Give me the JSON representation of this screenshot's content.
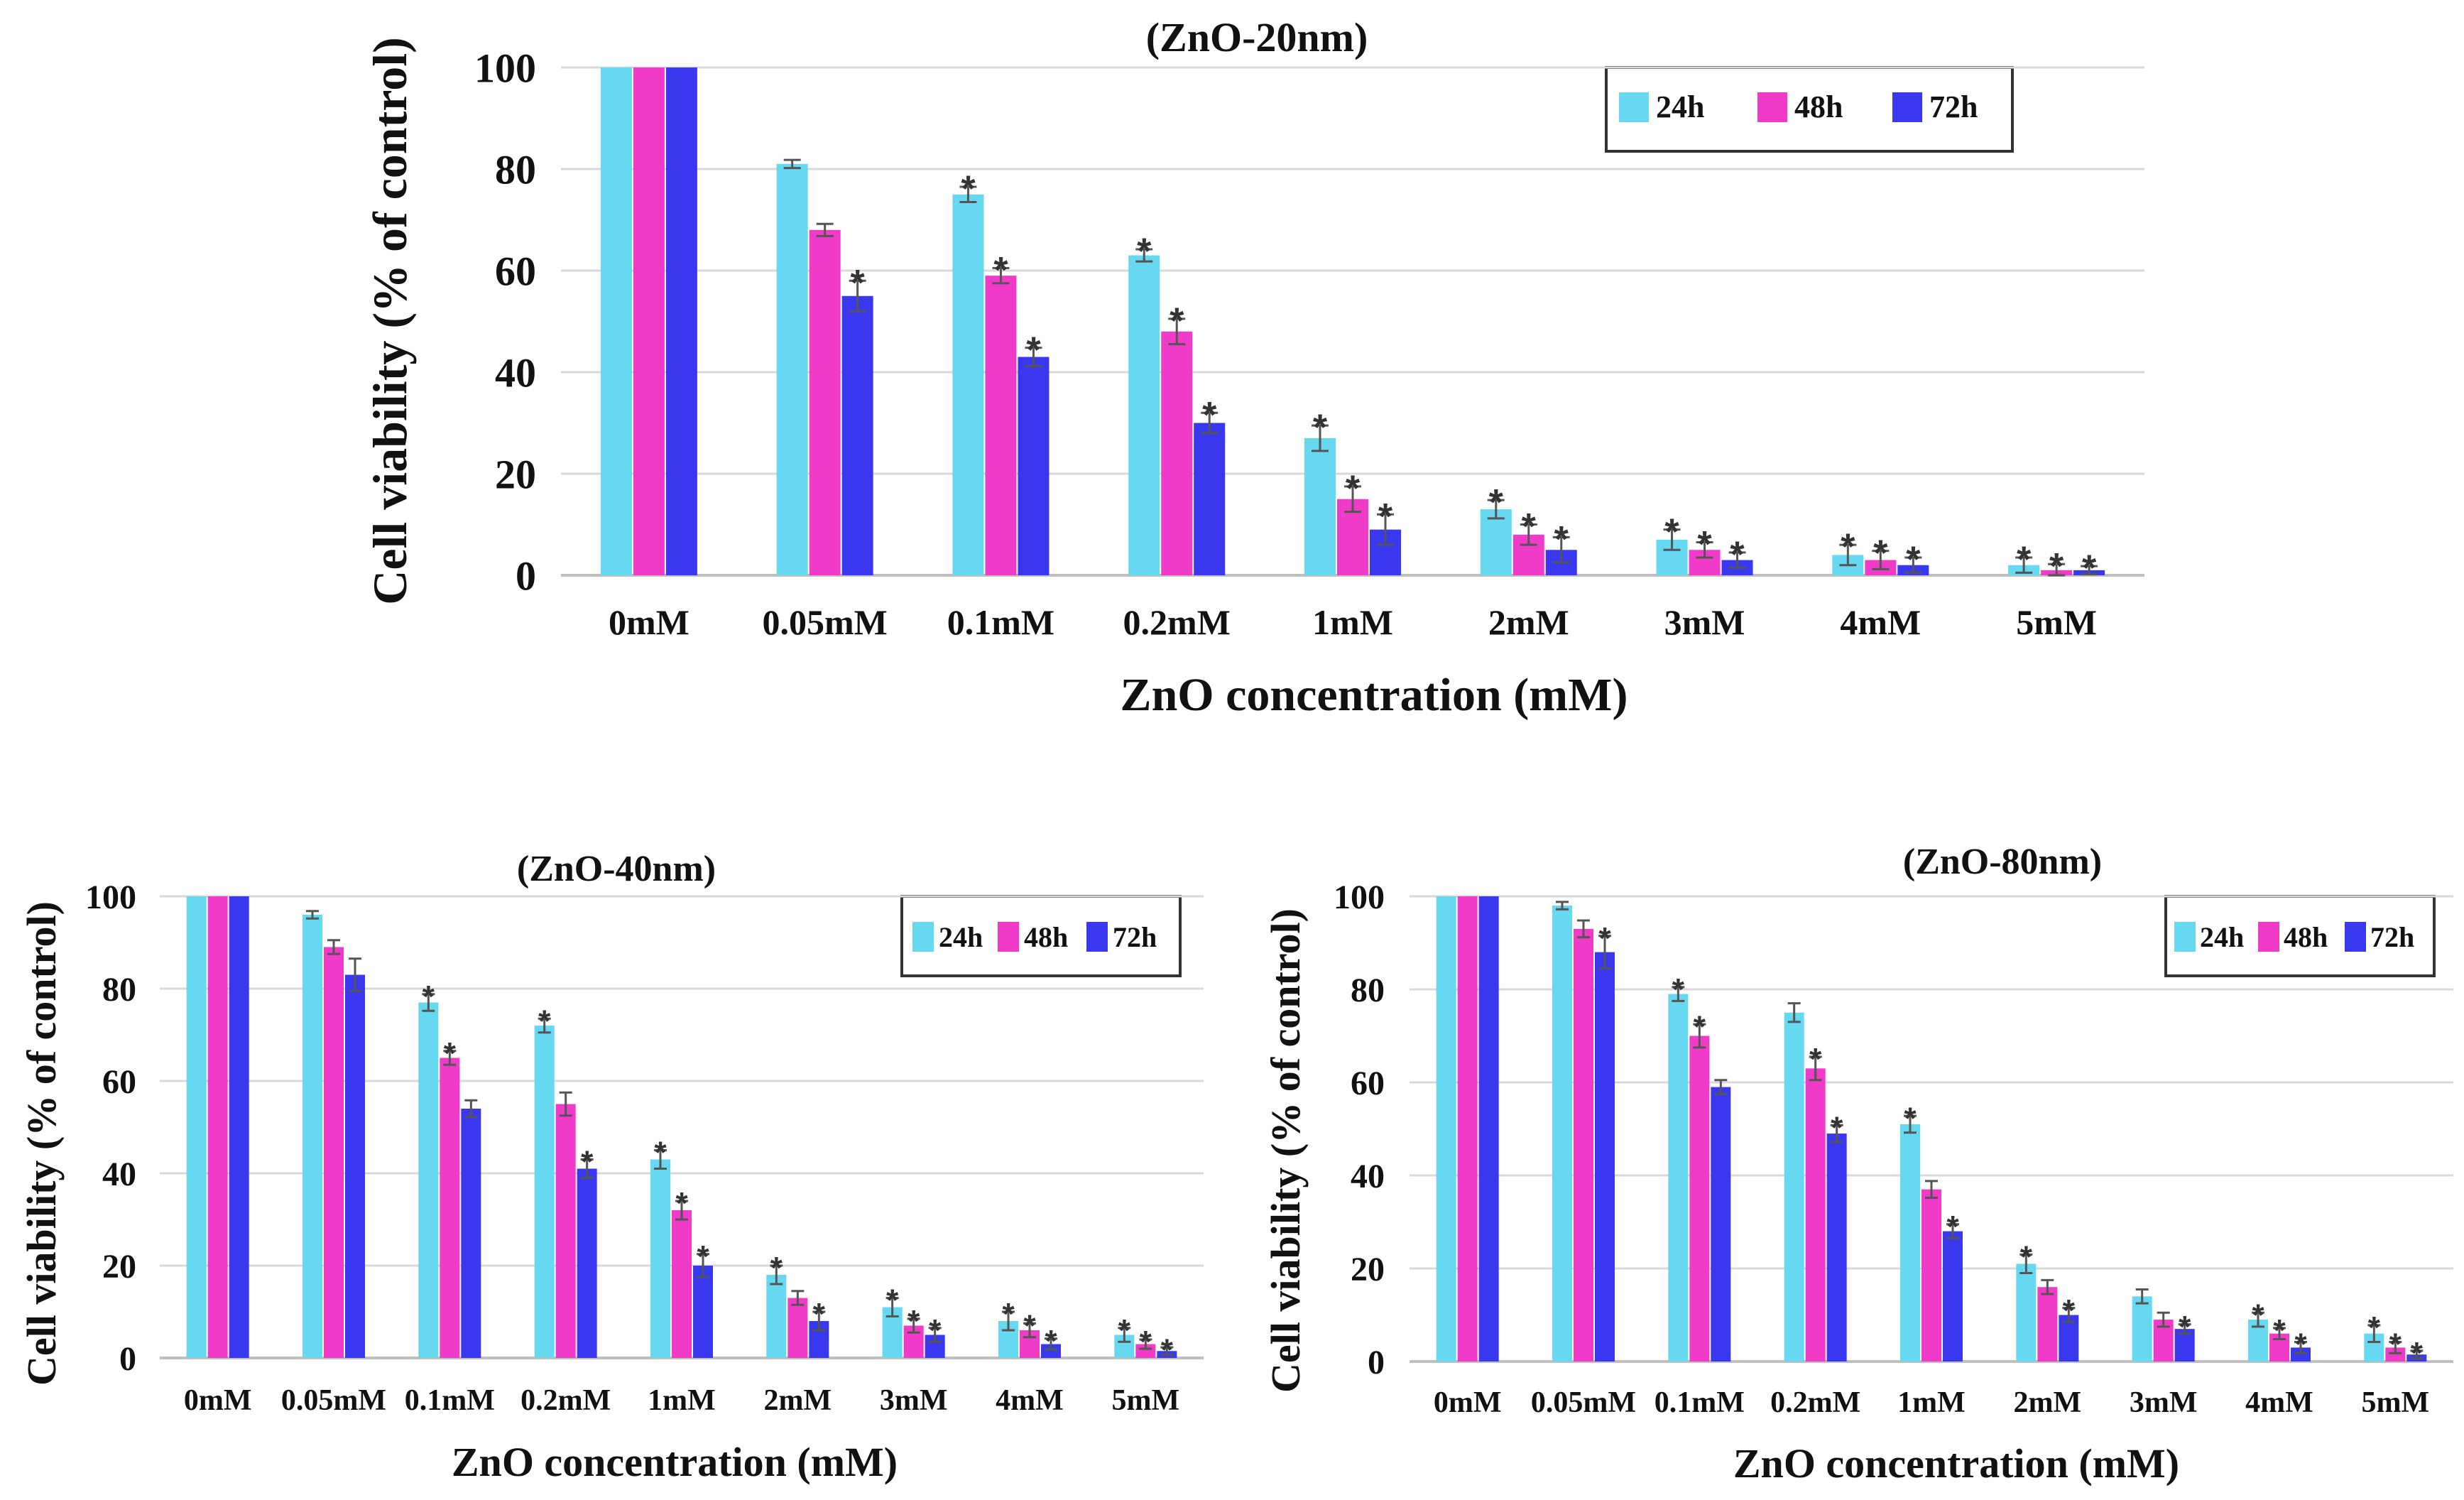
{
  "figure": {
    "name": "ZnO nanoparticle cytotoxicity panels"
  },
  "colors": {
    "24h": "#66D8F0",
    "48h": "#F03BC8",
    "72h": "#3A38EE",
    "grid": "#D9D9D9",
    "axis": "#BFBFBF",
    "text": "#111111",
    "error": "#555555"
  },
  "chart_data": [
    {
      "type": "bar",
      "title": "(ZnO-20nm)",
      "xlabel": "ZnO concentration (mM)",
      "ylabel": "Cell viability (% of control)",
      "ylim": [
        0,
        100
      ],
      "yticks": [
        "0",
        "20",
        "40",
        "60",
        "80",
        "100"
      ],
      "grid": true,
      "legend_position": "top-right",
      "categories": [
        "0mM",
        "0.05mM",
        "0.1mM",
        "0.2mM",
        "1mM",
        "2mM",
        "3mM",
        "4mM",
        "5mM"
      ],
      "series": [
        {
          "name": "24h",
          "color_key": "24h",
          "values": [
            100,
            81,
            75,
            63,
            27,
            13,
            7,
            4,
            2
          ],
          "errors": [
            0,
            0.8,
            1.5,
            1.2,
            2.5,
            1.8,
            2,
            2,
            1.5
          ],
          "significant": [
            false,
            false,
            true,
            true,
            true,
            true,
            true,
            true,
            true
          ]
        },
        {
          "name": "48h",
          "color_key": "48h",
          "values": [
            100,
            68,
            59,
            48,
            15,
            8,
            5,
            3,
            1
          ],
          "errors": [
            0,
            1.2,
            1.5,
            2.5,
            2.5,
            2,
            1.5,
            1.8,
            1.2
          ],
          "significant": [
            false,
            false,
            true,
            true,
            true,
            true,
            true,
            true,
            true
          ]
        },
        {
          "name": "72h",
          "color_key": "72h",
          "values": [
            100,
            55,
            43,
            30,
            9,
            5,
            3,
            2,
            1
          ],
          "errors": [
            0,
            3,
            1.8,
            2,
            3,
            2.5,
            1.5,
            1.5,
            0.8
          ],
          "significant": [
            false,
            true,
            true,
            true,
            true,
            true,
            true,
            true,
            true
          ]
        }
      ]
    },
    {
      "type": "bar",
      "title": "(ZnO-40nm)",
      "xlabel": "ZnO concentration (mM)",
      "ylabel": "Cell viability (% of control)",
      "ylim": [
        0,
        100
      ],
      "yticks": [
        "0",
        "20",
        "40",
        "60",
        "80",
        "100"
      ],
      "grid": true,
      "legend_position": "top-right",
      "categories": [
        "0mM",
        "0.05mM",
        "0.1mM",
        "0.2mM",
        "1mM",
        "2mM",
        "3mM",
        "4mM",
        "5mM"
      ],
      "series": [
        {
          "name": "24h",
          "color_key": "24h",
          "values": [
            100,
            96,
            77,
            72,
            43,
            18,
            11,
            8,
            5
          ],
          "errors": [
            0,
            0.8,
            1.8,
            1.5,
            2,
            2,
            2,
            2,
            1.5
          ],
          "significant": [
            false,
            false,
            true,
            true,
            true,
            true,
            true,
            true,
            true
          ]
        },
        {
          "name": "48h",
          "color_key": "48h",
          "values": [
            100,
            89,
            65,
            55,
            32,
            13,
            7,
            6,
            3
          ],
          "errors": [
            0,
            1.5,
            1.5,
            2.5,
            2,
            1.5,
            1.5,
            1.5,
            1
          ],
          "significant": [
            false,
            false,
            true,
            false,
            true,
            false,
            true,
            true,
            true
          ]
        },
        {
          "name": "72h",
          "color_key": "72h",
          "values": [
            100,
            83,
            54,
            41,
            20,
            8,
            5,
            3,
            1.5
          ],
          "errors": [
            0,
            3.5,
            1.8,
            2,
            2.5,
            2,
            1.5,
            1.2,
            0.8
          ],
          "significant": [
            false,
            false,
            false,
            true,
            true,
            true,
            true,
            true,
            true
          ]
        }
      ]
    },
    {
      "type": "bar",
      "title": "(ZnO-80nm)",
      "xlabel": "ZnO concentration (mM)",
      "ylabel": "Cell viability (% of control)",
      "ylim": [
        0,
        100
      ],
      "yticks": [
        "0",
        "20",
        "40",
        "60",
        "80",
        "100"
      ],
      "grid": true,
      "legend_position": "top-right",
      "categories": [
        "0mM",
        "0.05mM",
        "0.1mM",
        "0.2mM",
        "1mM",
        "2mM",
        "3mM",
        "4mM",
        "5mM"
      ],
      "series": [
        {
          "name": "24h",
          "color_key": "24h",
          "values": [
            100,
            98,
            79,
            75,
            51,
            21,
            14,
            9,
            6
          ],
          "errors": [
            0,
            0.8,
            1.5,
            2,
            1.8,
            2,
            1.5,
            1.5,
            1.8
          ],
          "significant": [
            false,
            false,
            true,
            false,
            true,
            true,
            false,
            true,
            true
          ]
        },
        {
          "name": "48h",
          "color_key": "48h",
          "values": [
            100,
            93,
            70,
            63,
            37,
            16,
            9,
            6,
            3
          ],
          "errors": [
            0,
            1.8,
            2.5,
            2.5,
            1.8,
            1.5,
            1.5,
            1.2,
            1.2
          ],
          "significant": [
            false,
            false,
            true,
            true,
            false,
            false,
            false,
            true,
            true
          ]
        },
        {
          "name": "72h",
          "color_key": "72h",
          "values": [
            100,
            88,
            59,
            49,
            28,
            10,
            7,
            3,
            1.5
          ],
          "errors": [
            0,
            3.5,
            1.5,
            1.8,
            1.5,
            1.5,
            1,
            1.2,
            0.8
          ],
          "significant": [
            false,
            true,
            false,
            true,
            true,
            true,
            true,
            true,
            true
          ]
        }
      ]
    }
  ]
}
